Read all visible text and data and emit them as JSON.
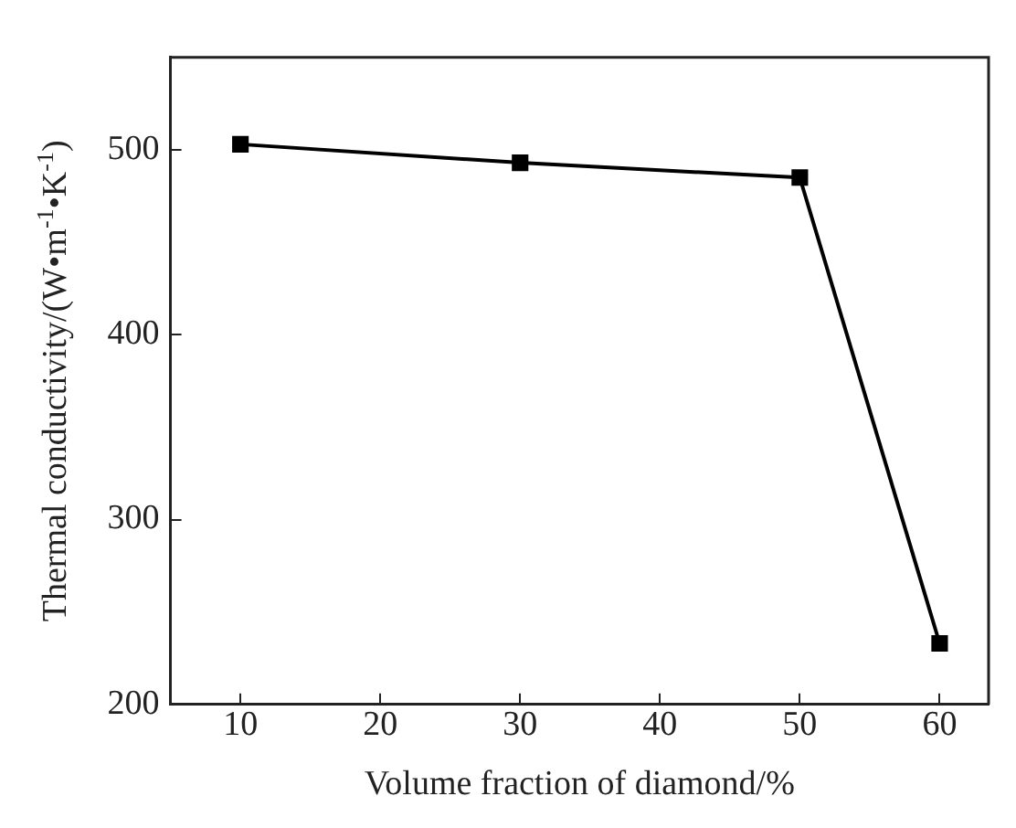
{
  "chart_data": {
    "type": "line",
    "xlabel": "Volume fraction of diamond/%",
    "ylabel": "Thermal conductivity/(W•m$^{-1}$•K$^{-1}$)",
    "x": [
      10,
      30,
      50,
      60
    ],
    "series": [
      {
        "color": "#000000",
        "values": [
          503,
          493,
          485,
          233
        ]
      }
    ],
    "xlim": [
      5,
      63.5
    ],
    "xticks": [
      10,
      20,
      30,
      40,
      50,
      60
    ],
    "ylim": [
      200,
      550
    ],
    "yticks": [
      200,
      300,
      400,
      500
    ],
    "grid": false,
    "legend": false,
    "marker": "square",
    "line_style": "solid"
  }
}
